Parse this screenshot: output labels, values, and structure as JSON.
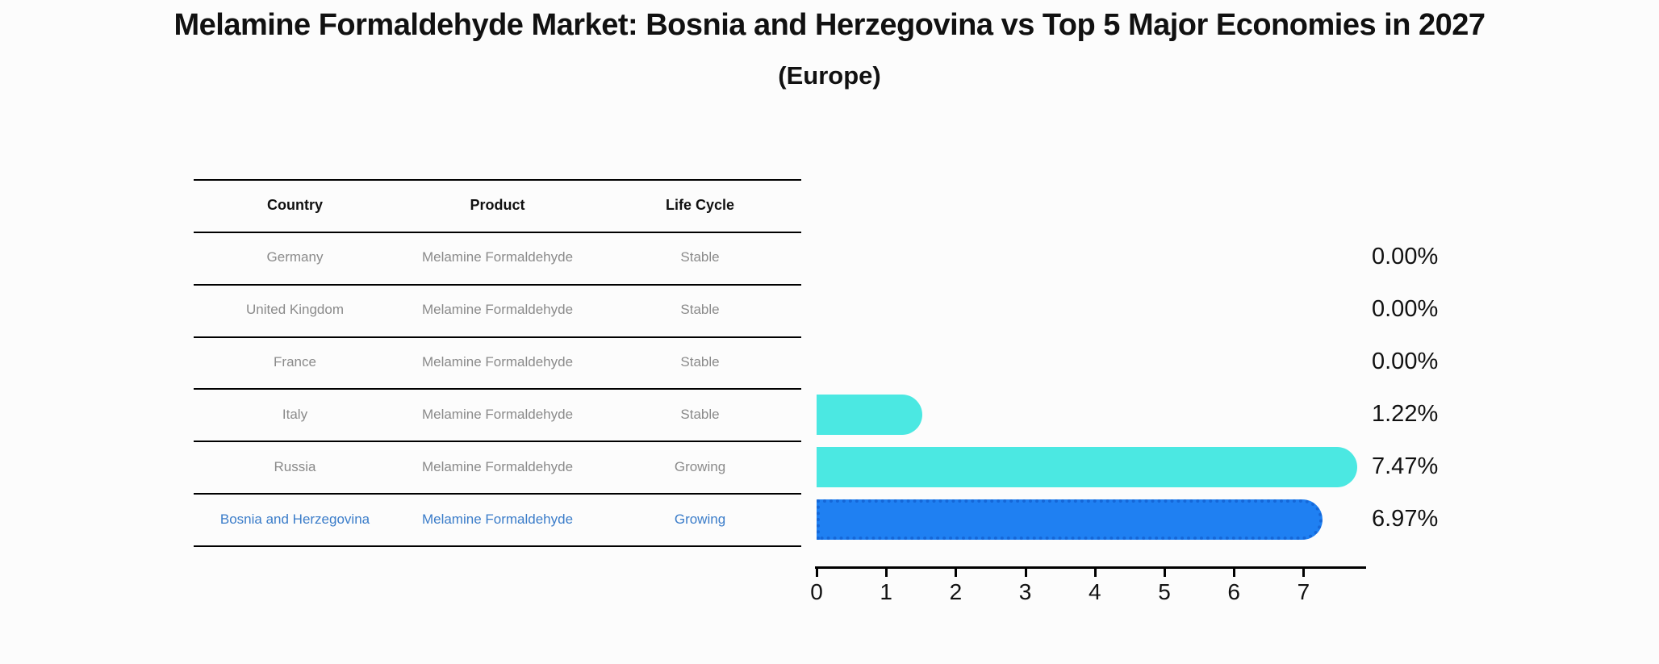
{
  "title": "Melamine Formaldehyde Market: Bosnia and Herzegovina vs Top 5 Major Economies in 2027",
  "subtitle": "(Europe)",
  "table": {
    "columns": [
      "Country",
      "Product",
      "Life Cycle"
    ],
    "rows": [
      {
        "country": "Germany",
        "product": "Melamine Formaldehyde",
        "life_cycle": "Stable",
        "highlighted": false
      },
      {
        "country": "United Kingdom",
        "product": "Melamine Formaldehyde",
        "life_cycle": "Stable",
        "highlighted": false
      },
      {
        "country": "France",
        "product": "Melamine Formaldehyde",
        "life_cycle": "Stable",
        "highlighted": false
      },
      {
        "country": "Italy",
        "product": "Melamine Formaldehyde",
        "life_cycle": "Stable",
        "highlighted": false
      },
      {
        "country": "Russia",
        "product": "Melamine Formaldehyde",
        "life_cycle": "Growing",
        "highlighted": false
      },
      {
        "country": "Bosnia and Herzegovina",
        "product": "Melamine Formaldehyde",
        "life_cycle": "Growing",
        "highlighted": true
      }
    ]
  },
  "chart_data": {
    "type": "bar",
    "orientation": "horizontal",
    "title": "Melamine Formaldehyde Market: Bosnia and Herzegovina vs Top 5 Major Economies in 2027 (Europe)",
    "categories": [
      "Germany",
      "United Kingdom",
      "France",
      "Italy",
      "Russia",
      "Bosnia and Herzegovina"
    ],
    "values": [
      0.0,
      0.0,
      0.0,
      1.22,
      7.47,
      6.97
    ],
    "value_labels": [
      "0.00%",
      "0.00%",
      "0.00%",
      "1.22%",
      "7.47%",
      "6.97%"
    ],
    "x_ticks": [
      "0",
      "1",
      "2",
      "3",
      "4",
      "5",
      "6",
      "7"
    ],
    "xlim": [
      0,
      7.9
    ],
    "xlabel": "",
    "ylabel": "",
    "grid": false,
    "legend_position": "none"
  },
  "colors": {
    "background": "#fcfcfc",
    "bar_default": "#4be8e2",
    "bar_highlight": "#1f80f2",
    "bar_highlight_border": "#1567d8",
    "table_text": "#8a8a8a",
    "table_highlight_text": "#3a7cc9",
    "heading_text": "#111111",
    "line": "#000000"
  }
}
